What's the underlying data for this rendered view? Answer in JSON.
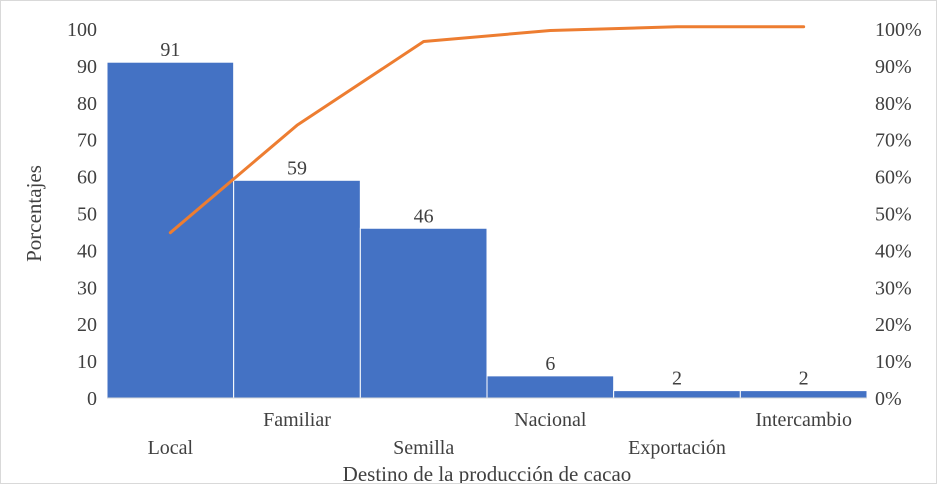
{
  "chart_data": {
    "type": "bar",
    "categories": [
      "Local",
      "Familiar",
      "Semilla",
      "Nacional",
      "Exportación",
      "Intercambio"
    ],
    "series": [
      {
        "values": [
          91,
          59,
          46,
          6,
          2,
          2
        ],
        "type": "bar"
      },
      {
        "values": [
          44.8,
          73.9,
          96.6,
          99.6,
          100.6,
          100.6
        ],
        "type": "line",
        "axis": "right"
      }
    ],
    "data_labels": [
      "91",
      "59",
      "46",
      "6",
      "2",
      "2"
    ],
    "xlabel": "Destino de la producción de cacao",
    "ylabel": "Porcentajes",
    "ylim": [
      0,
      100
    ],
    "y_ticks": [
      "0",
      "10",
      "20",
      "30",
      "40",
      "50",
      "60",
      "70",
      "80",
      "90",
      "100"
    ],
    "y2lim": [
      0,
      100
    ],
    "y2_ticks": [
      "0%",
      "10%",
      "20%",
      "30%",
      "40%",
      "50%",
      "60%",
      "70%",
      "80%",
      "90%",
      "100%"
    ],
    "grid": false,
    "colors": {
      "bar": "#4472c4",
      "line": "#ed7d31"
    }
  }
}
